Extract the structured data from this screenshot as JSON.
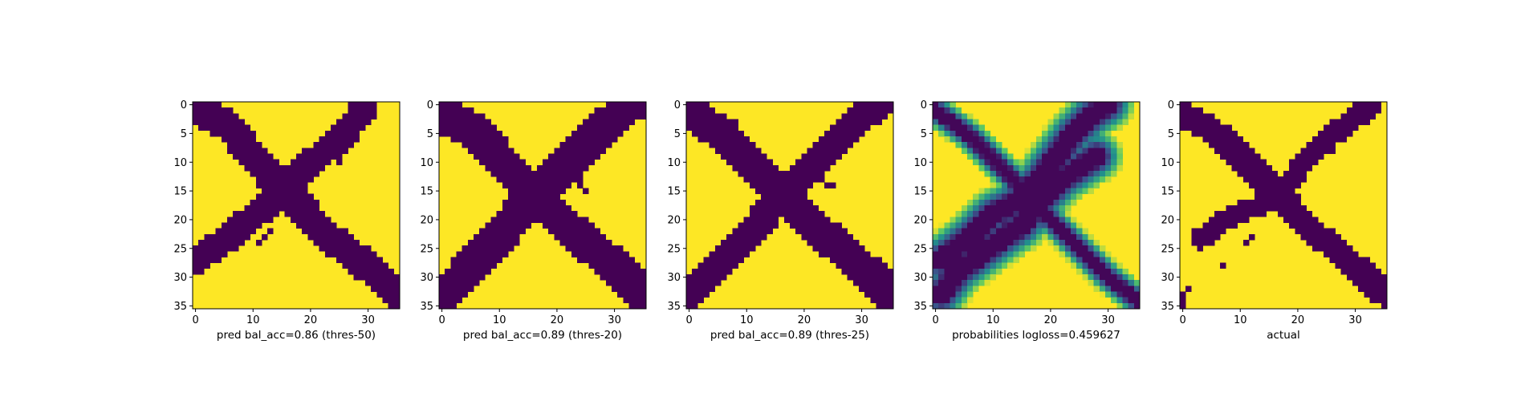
{
  "chart_data": [
    {
      "type": "heatmap",
      "xlabel": "pred bal_acc=0.86 (thres-50)",
      "grid_size": 36,
      "xticks": [
        0,
        10,
        20,
        30
      ],
      "yticks": [
        0,
        5,
        10,
        15,
        20,
        25,
        30,
        35
      ],
      "grid": false,
      "colors": {
        "low": "#440154",
        "high": "#fde725"
      },
      "bands": [
        {
          "name": "main",
          "points": [
            [
              0,
              0.5
            ],
            [
              6,
              4
            ],
            [
              10,
              9
            ],
            [
              14,
              13.5
            ],
            [
              18,
              17.5
            ],
            [
              22,
              22
            ],
            [
              27,
              26
            ],
            [
              31,
              29
            ],
            [
              35,
              33
            ]
          ],
          "width": 2.6
        },
        {
          "name": "anti",
          "points": [
            [
              0,
              27
            ],
            [
              6,
              23
            ],
            [
              10,
              19.5
            ],
            [
              14,
              16
            ],
            [
              18,
              12
            ],
            [
              22,
              8.5
            ],
            [
              26,
              5
            ],
            [
              29,
              1
            ]
          ],
          "width": 2.4
        }
      ],
      "spots": [
        [
          11,
          24
        ],
        [
          12,
          23
        ],
        [
          13,
          22
        ],
        [
          20,
          12
        ],
        [
          21,
          11
        ],
        [
          22,
          10
        ],
        [
          25,
          10
        ]
      ]
    },
    {
      "type": "heatmap",
      "xlabel": "pred bal_acc=0.89 (thres-20)",
      "grid_size": 36,
      "xticks": [
        0,
        10,
        20,
        30
      ],
      "yticks": [
        0,
        5,
        10,
        15,
        20,
        25,
        30,
        35
      ],
      "grid": false,
      "colors": {
        "low": "#440154",
        "high": "#fde725"
      },
      "bands": [
        {
          "name": "main",
          "points": [
            [
              0,
              1.5
            ],
            [
              6,
              5
            ],
            [
              10,
              9.5
            ],
            [
              14,
              13.5
            ],
            [
              18,
              17.5
            ],
            [
              22,
              21.5
            ],
            [
              27,
              25.5
            ],
            [
              31,
              29
            ],
            [
              35,
              33
            ]
          ],
          "width": 3.1
        },
        {
          "name": "anti",
          "points": [
            [
              0,
              33.5
            ],
            [
              5,
              28
            ],
            [
              9,
              24
            ],
            [
              13,
              19
            ],
            [
              17,
              15
            ],
            [
              21,
              11
            ],
            [
              25,
              7
            ],
            [
              29,
              3
            ],
            [
              33,
              0
            ]
          ],
          "width": 2.9
        }
      ],
      "spots": [
        [
          6,
          28
        ],
        [
          7,
          28
        ],
        [
          11,
          25
        ],
        [
          12,
          25
        ],
        [
          13,
          24
        ],
        [
          22,
          13
        ],
        [
          23,
          13
        ],
        [
          24,
          13
        ],
        [
          23,
          12
        ],
        [
          24,
          14
        ],
        [
          25,
          15
        ]
      ]
    },
    {
      "type": "heatmap",
      "xlabel": "pred bal_acc=0.89 (thres-25)",
      "grid_size": 36,
      "xticks": [
        0,
        10,
        20,
        30
      ],
      "yticks": [
        0,
        5,
        10,
        15,
        20,
        25,
        30,
        35
      ],
      "grid": false,
      "colors": {
        "low": "#440154",
        "high": "#fde725"
      },
      "bands": [
        {
          "name": "main",
          "points": [
            [
              0,
              1.5
            ],
            [
              6,
              5
            ],
            [
              10,
              9.5
            ],
            [
              14,
              13.5
            ],
            [
              18,
              17.5
            ],
            [
              22,
              21.5
            ],
            [
              27,
              25.5
            ],
            [
              31,
              29
            ],
            [
              35,
              33
            ]
          ],
          "width": 2.9
        },
        {
          "name": "anti",
          "points": [
            [
              0,
              33
            ],
            [
              5,
              28
            ],
            [
              9,
              24
            ],
            [
              13,
              19.5
            ],
            [
              17,
              15
            ],
            [
              21,
              11
            ],
            [
              25,
              7
            ],
            [
              29,
              3
            ],
            [
              33,
              0
            ]
          ],
          "width": 2.5
        }
      ],
      "spots": [
        [
          7,
          28
        ],
        [
          11,
          24
        ],
        [
          12,
          24
        ],
        [
          13,
          23
        ],
        [
          22,
          13
        ],
        [
          23,
          13
        ],
        [
          24,
          14
        ],
        [
          25,
          14
        ]
      ]
    },
    {
      "type": "heatmap",
      "xlabel": "probabilities logloss=0.459627",
      "grid_size": 36,
      "xticks": [
        0,
        10,
        20,
        30
      ],
      "yticks": [
        0,
        5,
        10,
        15,
        20,
        25,
        30,
        35
      ],
      "grid": false,
      "colors": {
        "low": "#440154",
        "high": "#fde725"
      },
      "bands": [
        {
          "name": "main",
          "points": [
            [
              0,
              1
            ],
            [
              6,
              5.5
            ],
            [
              10,
              9.5
            ],
            [
              14,
              13.5
            ],
            [
              18,
              18
            ],
            [
              22,
              22
            ],
            [
              26,
              26
            ],
            [
              30,
              30
            ],
            [
              35,
              34
            ]
          ],
          "width": 1.9
        },
        {
          "name": "anti-upper",
          "points": [
            [
              1,
              27
            ],
            [
              6,
              23
            ],
            [
              10,
              19
            ],
            [
              14,
              17
            ],
            [
              18,
              13
            ],
            [
              21,
              9
            ],
            [
              24,
              5
            ],
            [
              27,
              2
            ],
            [
              30,
              0
            ]
          ],
          "width": 3.0
        },
        {
          "name": "anti-lower",
          "points": [
            [
              1,
              33
            ],
            [
              4,
              29
            ],
            [
              8,
              26
            ],
            [
              12,
              23
            ],
            [
              15,
              21
            ],
            [
              19,
              16
            ],
            [
              22,
              13
            ],
            [
              25,
              11
            ],
            [
              28,
              9
            ]
          ],
          "width": 3.0
        }
      ]
    },
    {
      "type": "heatmap",
      "xlabel": "actual",
      "grid_size": 36,
      "xticks": [
        0,
        10,
        20,
        30
      ],
      "yticks": [
        0,
        5,
        10,
        15,
        20,
        25,
        30,
        35
      ],
      "grid": false,
      "colors": {
        "low": "#440154",
        "high": "#fde725"
      },
      "bands": [
        {
          "name": "main",
          "points": [
            [
              0,
              1.5
            ],
            [
              6,
              5
            ],
            [
              10,
              9
            ],
            [
              14,
              13
            ],
            [
              18,
              17
            ],
            [
              22,
              21.5
            ],
            [
              27,
              25.5
            ],
            [
              31,
              29
            ],
            [
              35,
              33
            ]
          ],
          "width": 2.2
        },
        {
          "name": "anti",
          "points": [
            [
              3,
              23.5
            ],
            [
              6,
              21
            ],
            [
              10,
              18.5
            ],
            [
              14,
              17.5
            ],
            [
              18,
              14
            ],
            [
              22,
              9
            ],
            [
              25,
              6
            ],
            [
              29,
              3
            ],
            [
              33,
              0
            ]
          ],
          "width": 1.8
        }
      ],
      "spots": [
        [
          7,
          28
        ],
        [
          11,
          24
        ],
        [
          12,
          23
        ],
        [
          21,
          12
        ],
        [
          22,
          11
        ],
        [
          26,
          8
        ],
        [
          0,
          33
        ],
        [
          1,
          32
        ],
        [
          0,
          34
        ],
        [
          0,
          35
        ]
      ]
    }
  ]
}
